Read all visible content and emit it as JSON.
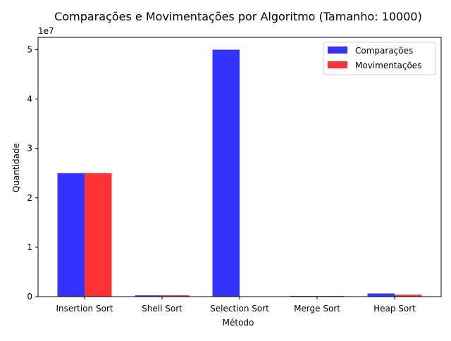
{
  "chart_data": {
    "type": "bar",
    "title": "Comparações e Movimentações por Algoritmo (Tamanho: 10000)",
    "xlabel": "Método",
    "ylabel": "Quantidade",
    "y_scale_label": "1e7",
    "y_multiplier": 10000000,
    "ylim": [
      0,
      52500000
    ],
    "yticks": [
      0,
      1,
      2,
      3,
      4,
      5
    ],
    "categories": [
      "Insertion Sort",
      "Shell Sort",
      "Selection Sort",
      "Merge Sort",
      "Heap Sort"
    ],
    "series": [
      {
        "name": "Comparações",
        "color": "#3333ff",
        "values": [
          25000000,
          250000,
          50000000,
          130000,
          640000
        ]
      },
      {
        "name": "Movimentações",
        "color": "#ff3333",
        "values": [
          25000000,
          270000,
          30000,
          140000,
          380000
        ]
      }
    ],
    "legend_position": "top-right",
    "grid": false
  }
}
